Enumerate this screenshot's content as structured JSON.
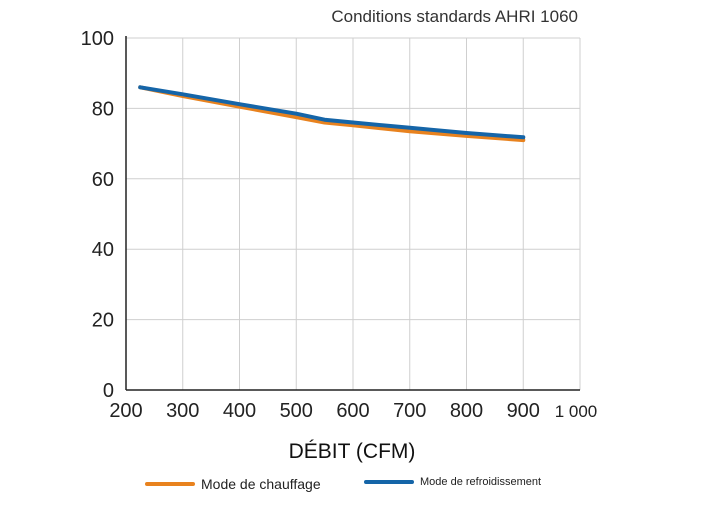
{
  "chart_data": {
    "type": "line",
    "title": "Conditions standards AHRI 1060",
    "xlabel": "DÉBIT (CFM)",
    "ylabel": "",
    "xlim": [
      200,
      1000
    ],
    "ylim": [
      0,
      100
    ],
    "x_ticks": [
      "200",
      "300",
      "400",
      "500",
      "600",
      "700",
      "800",
      "900",
      "1 000"
    ],
    "y_ticks": [
      "0",
      "20",
      "40",
      "60",
      "80",
      "100"
    ],
    "grid": true,
    "legend_placement": "bottom",
    "series": [
      {
        "name": "Mode de chauffage",
        "color": "#e8821e",
        "x": [
          225,
          300,
          400,
          500,
          550,
          600,
          700,
          800,
          900
        ],
        "y": [
          86.0,
          83.5,
          80.5,
          77.5,
          76.0,
          75.2,
          73.5,
          72.2,
          71.0
        ]
      },
      {
        "name": "Mode de refroidissement",
        "color": "#1565a8",
        "x": [
          225,
          300,
          400,
          500,
          550,
          600,
          700,
          800,
          900
        ],
        "y": [
          86.0,
          84.0,
          81.2,
          78.5,
          76.8,
          76.0,
          74.5,
          73.0,
          71.8
        ]
      }
    ]
  }
}
